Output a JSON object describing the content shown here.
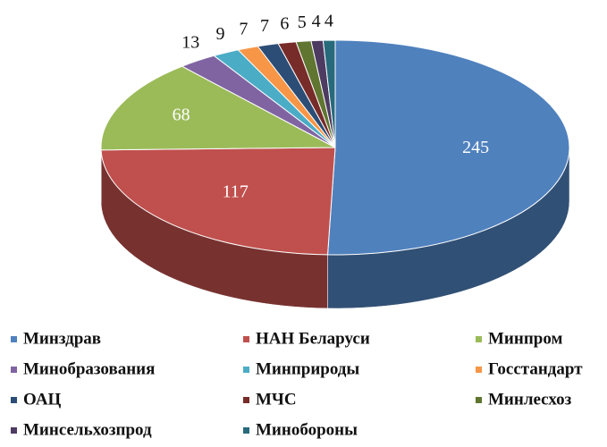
{
  "chart_data": {
    "type": "pie",
    "categories": [
      "Минздрав",
      "НАН Беларуси",
      "Минпром",
      "Минобразования",
      "Минприроды",
      "Госстандарт",
      "ОАЦ",
      "МЧС",
      "Минлесхоз",
      "Минсельхозпрод",
      "Минобороны"
    ],
    "values": [
      245,
      117,
      68,
      13,
      9,
      7,
      7,
      6,
      5,
      4,
      4
    ],
    "colors": [
      "#4f81bd",
      "#c0504d",
      "#9bbb59",
      "#8064a2",
      "#4bacc6",
      "#f79646",
      "#2c4d75",
      "#772c2a",
      "#5f7530",
      "#4d3b62",
      "#276a7c"
    ],
    "legend": "bottom"
  }
}
